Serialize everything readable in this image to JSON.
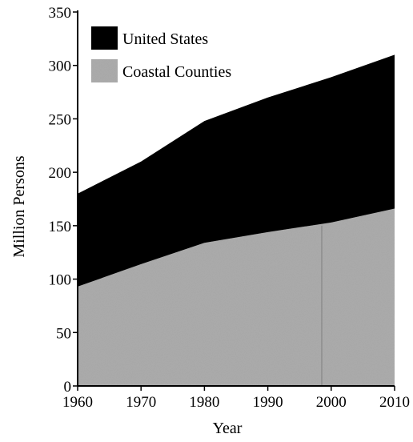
{
  "chart_data": {
    "type": "area",
    "xlabel": "Year",
    "ylabel": "Million Persons",
    "xlim": [
      1960,
      2010
    ],
    "ylim": [
      0,
      350
    ],
    "x_ticks": [
      1960,
      1970,
      1980,
      1990,
      2000,
      2010
    ],
    "y_ticks": [
      0,
      50,
      100,
      150,
      200,
      250,
      300,
      350
    ],
    "legend_position": "top-left",
    "grid": false,
    "x": [
      1960,
      1970,
      1980,
      1990,
      2000,
      2010
    ],
    "series": [
      {
        "name": "United States",
        "color": "#000000",
        "values": [
          180,
          210,
          248,
          270,
          289,
          310
        ]
      },
      {
        "name": "Coastal Counties",
        "color": "#a6a6a6",
        "values": [
          93,
          114,
          134,
          144,
          153,
          166
        ]
      }
    ]
  }
}
